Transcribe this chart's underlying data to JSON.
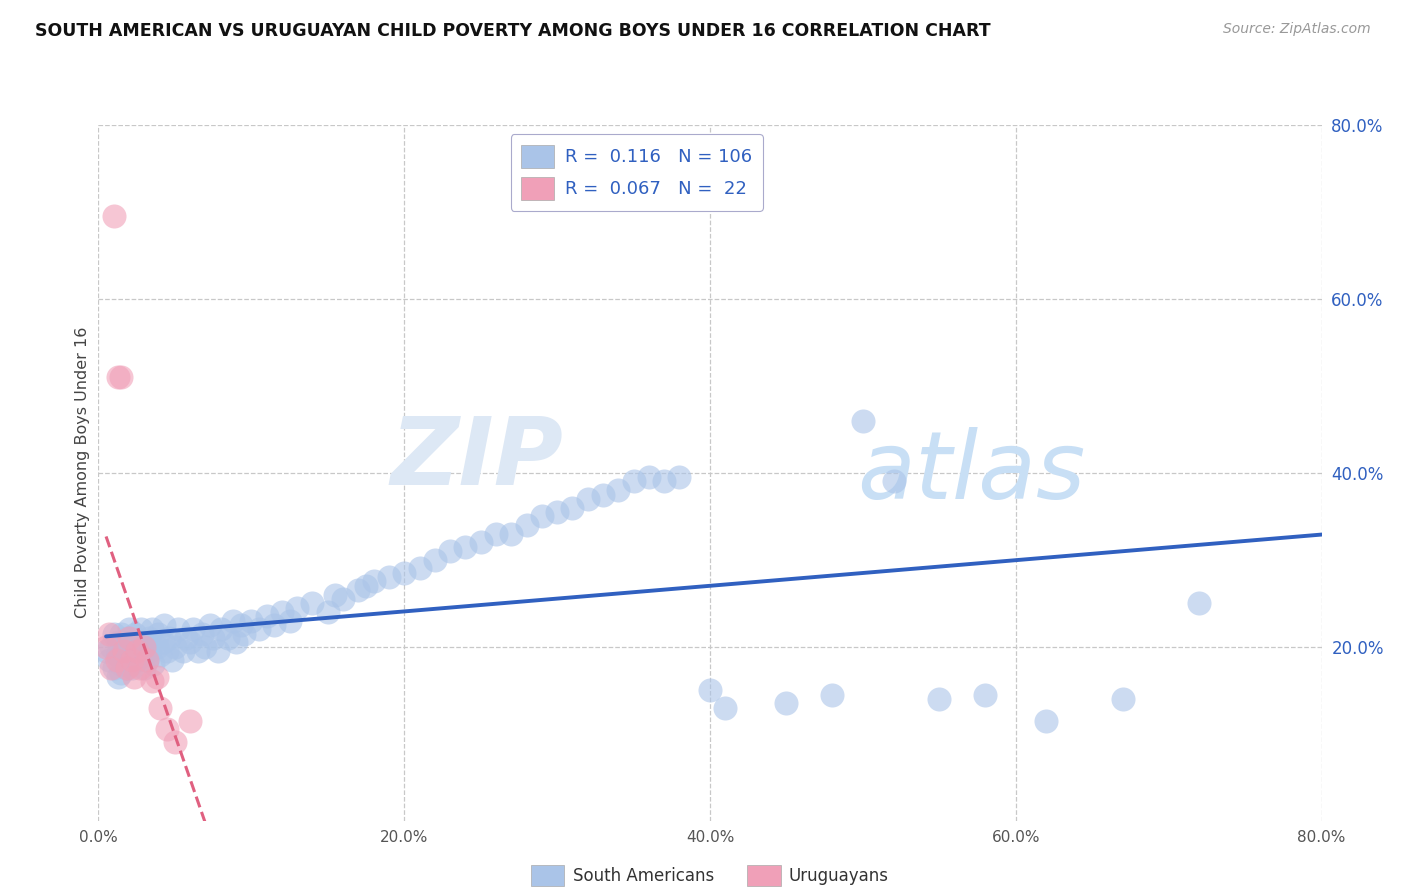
{
  "title": "SOUTH AMERICAN VS URUGUAYAN CHILD POVERTY AMONG BOYS UNDER 16 CORRELATION CHART",
  "source": "Source: ZipAtlas.com",
  "ylabel": "Child Poverty Among Boys Under 16",
  "xlim": [
    0.0,
    0.8
  ],
  "ylim": [
    0.0,
    0.8
  ],
  "xtick_values": [
    0.0,
    0.2,
    0.4,
    0.6,
    0.8
  ],
  "ytick_values": [
    0.2,
    0.4,
    0.6,
    0.8
  ],
  "r_south_american": 0.116,
  "n_south_american": 106,
  "r_uruguayan": 0.067,
  "n_uruguayan": 22,
  "south_american_color": "#aac4e8",
  "uruguayan_color": "#f0a0b8",
  "trend_sa_color": "#3060c0",
  "trend_uy_color": "#e06080",
  "watermark_zip": "ZIP",
  "watermark_atlas": "atlas",
  "background_color": "#ffffff",
  "grid_color": "#c8c8c8",
  "legend_text_color": "#3060c0",
  "legend_r_label_color": "#333333",
  "sa_x": [
    0.005,
    0.007,
    0.008,
    0.01,
    0.01,
    0.012,
    0.013,
    0.013,
    0.014,
    0.015,
    0.015,
    0.016,
    0.017,
    0.018,
    0.018,
    0.019,
    0.02,
    0.02,
    0.021,
    0.022,
    0.022,
    0.023,
    0.024,
    0.025,
    0.026,
    0.027,
    0.028,
    0.03,
    0.03,
    0.031,
    0.032,
    0.033,
    0.034,
    0.035,
    0.036,
    0.038,
    0.039,
    0.04,
    0.042,
    0.043,
    0.045,
    0.046,
    0.048,
    0.05,
    0.052,
    0.055,
    0.057,
    0.06,
    0.062,
    0.065,
    0.068,
    0.07,
    0.073,
    0.075,
    0.078,
    0.08,
    0.085,
    0.088,
    0.09,
    0.093,
    0.095,
    0.1,
    0.105,
    0.11,
    0.115,
    0.12,
    0.125,
    0.13,
    0.14,
    0.15,
    0.155,
    0.16,
    0.17,
    0.175,
    0.18,
    0.19,
    0.2,
    0.21,
    0.22,
    0.23,
    0.24,
    0.25,
    0.26,
    0.27,
    0.28,
    0.29,
    0.3,
    0.31,
    0.32,
    0.33,
    0.34,
    0.35,
    0.36,
    0.37,
    0.38,
    0.4,
    0.41,
    0.45,
    0.48,
    0.5,
    0.52,
    0.55,
    0.58,
    0.62,
    0.67,
    0.72
  ],
  "sa_y": [
    0.195,
    0.185,
    0.2,
    0.175,
    0.215,
    0.19,
    0.165,
    0.205,
    0.18,
    0.17,
    0.215,
    0.195,
    0.185,
    0.175,
    0.205,
    0.21,
    0.19,
    0.22,
    0.18,
    0.175,
    0.2,
    0.195,
    0.215,
    0.185,
    0.19,
    0.2,
    0.22,
    0.175,
    0.205,
    0.195,
    0.185,
    0.21,
    0.195,
    0.22,
    0.18,
    0.2,
    0.215,
    0.19,
    0.205,
    0.225,
    0.195,
    0.21,
    0.185,
    0.2,
    0.22,
    0.195,
    0.21,
    0.205,
    0.22,
    0.195,
    0.215,
    0.2,
    0.225,
    0.21,
    0.195,
    0.22,
    0.21,
    0.23,
    0.205,
    0.225,
    0.215,
    0.23,
    0.22,
    0.235,
    0.225,
    0.24,
    0.23,
    0.245,
    0.25,
    0.24,
    0.26,
    0.255,
    0.265,
    0.27,
    0.275,
    0.28,
    0.285,
    0.29,
    0.3,
    0.31,
    0.315,
    0.32,
    0.33,
    0.33,
    0.34,
    0.35,
    0.355,
    0.36,
    0.37,
    0.375,
    0.38,
    0.39,
    0.395,
    0.39,
    0.395,
    0.15,
    0.13,
    0.135,
    0.145,
    0.46,
    0.39,
    0.14,
    0.145,
    0.115,
    0.14,
    0.25
  ],
  "uy_x": [
    0.005,
    0.007,
    0.008,
    0.01,
    0.012,
    0.013,
    0.015,
    0.017,
    0.019,
    0.02,
    0.022,
    0.023,
    0.025,
    0.027,
    0.03,
    0.032,
    0.035,
    0.038,
    0.04,
    0.045,
    0.05,
    0.06
  ],
  "uy_y": [
    0.2,
    0.215,
    0.175,
    0.695,
    0.185,
    0.51,
    0.51,
    0.195,
    0.175,
    0.21,
    0.185,
    0.165,
    0.195,
    0.175,
    0.2,
    0.185,
    0.16,
    0.165,
    0.13,
    0.105,
    0.09,
    0.115
  ]
}
